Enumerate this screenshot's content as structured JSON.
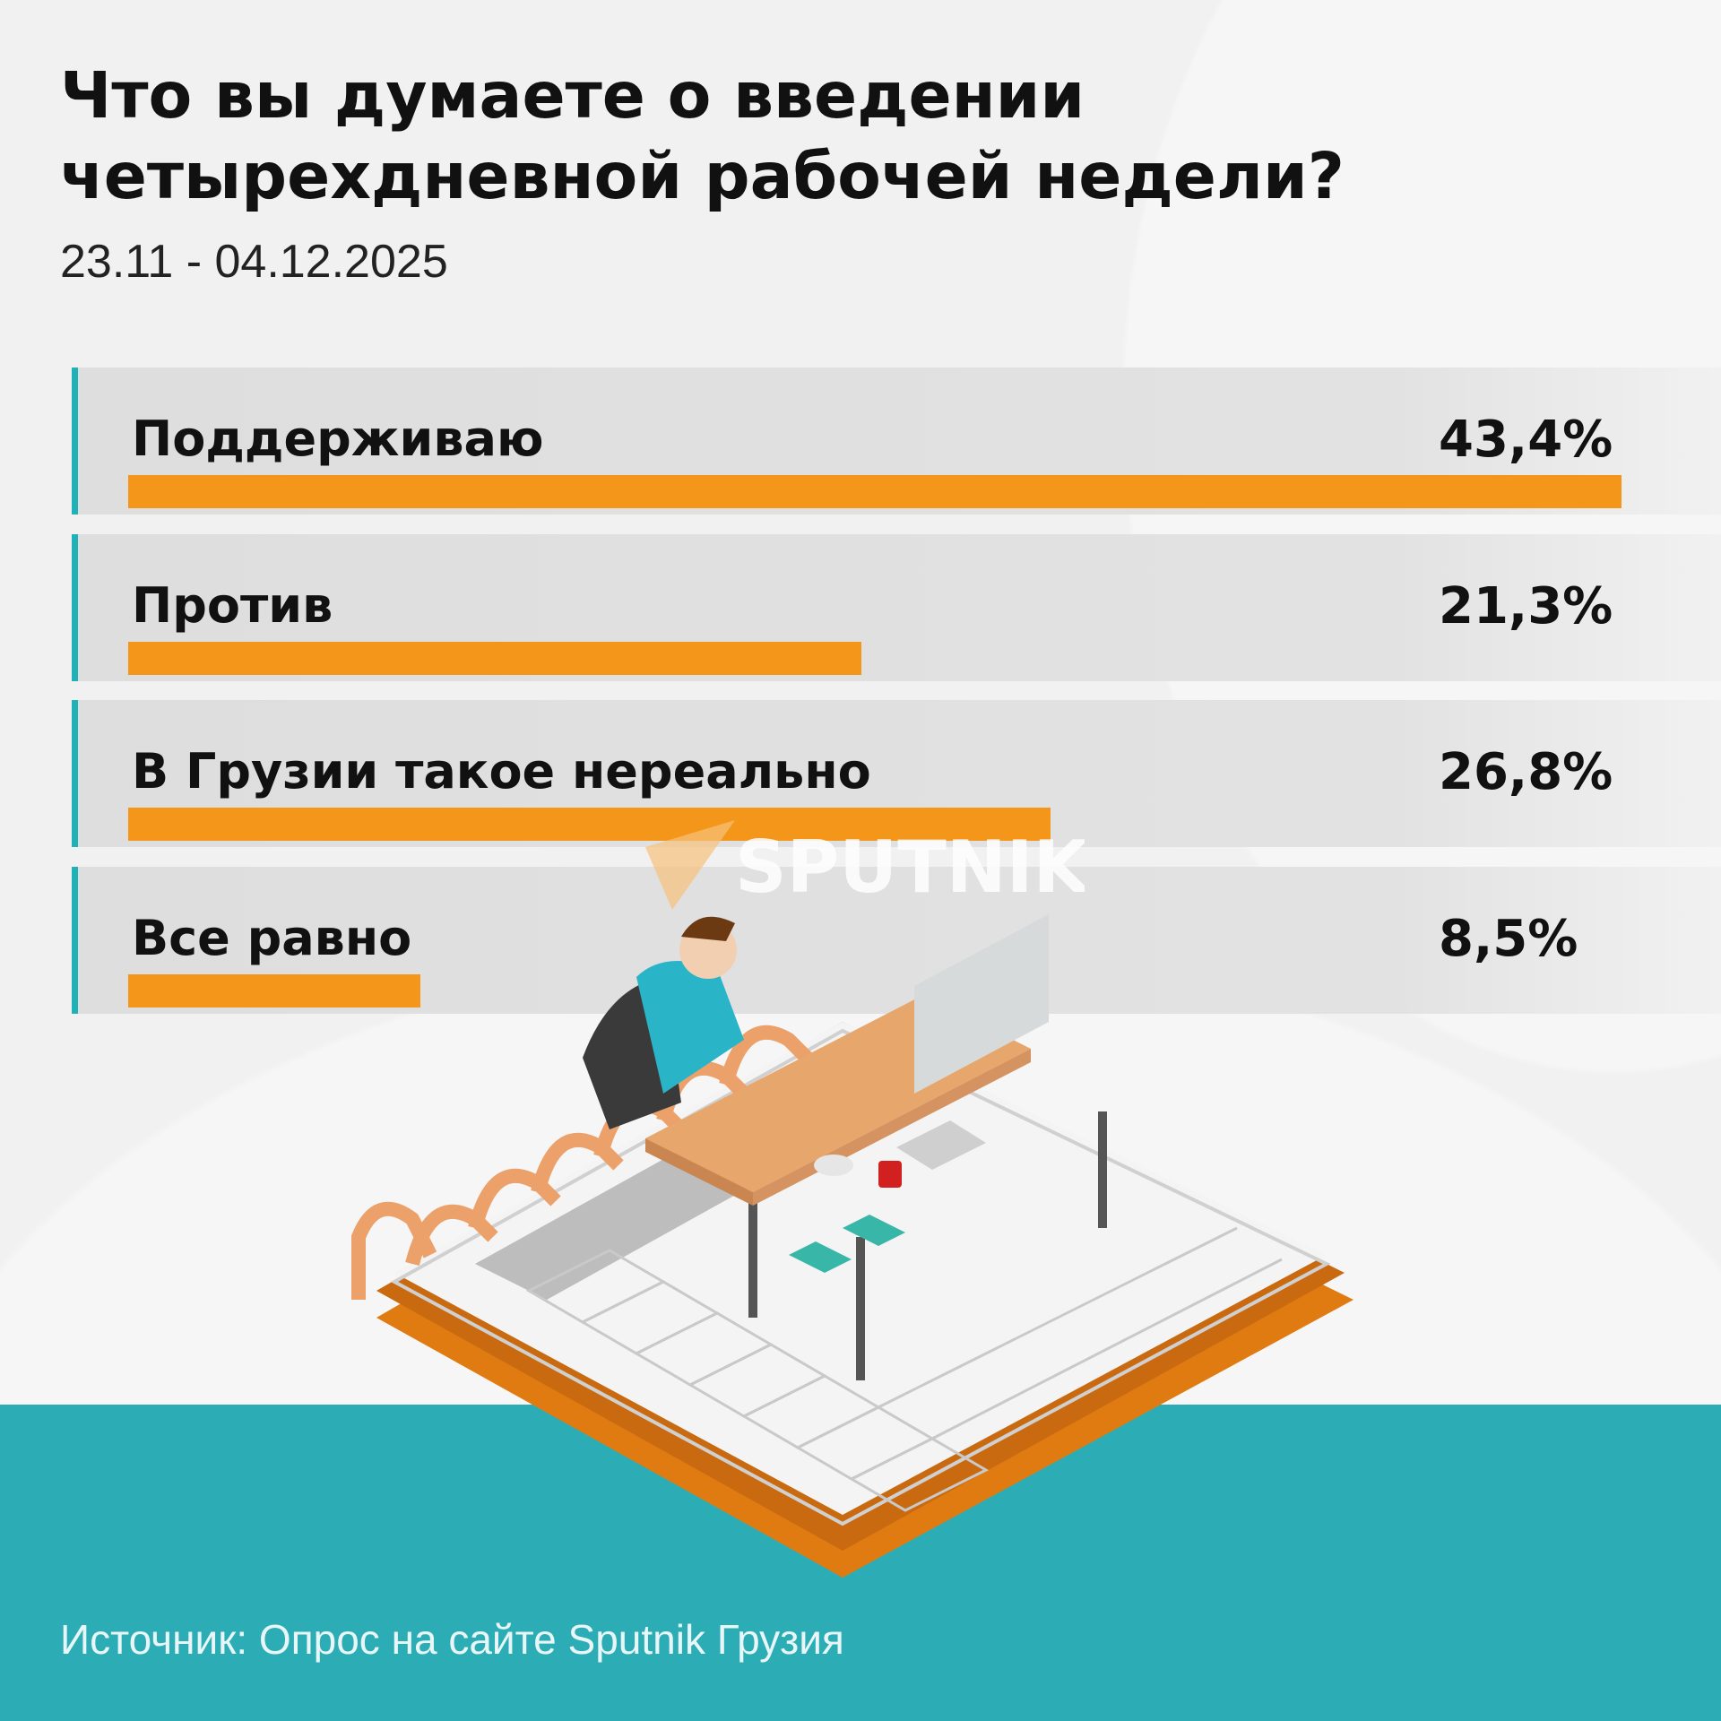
{
  "title": "Что вы думаете о введении четырехдневной рабочей недели?",
  "subtitle": "23.11 - 04.12.2025",
  "source": "Источник: Опрос на сайте Sputnik Грузия",
  "watermark": "SPUTNIK",
  "colors": {
    "bar": "#f3961a",
    "accent": "#20b0b8",
    "footer": "#2cadb6"
  },
  "chart_data": {
    "type": "bar",
    "orientation": "horizontal",
    "title": "Что вы думаете о введении четырехдневной рабочей недели?",
    "subtitle": "23.11 - 04.12.2025",
    "categories": [
      "Поддерживаю",
      "Против",
      "В Грузии такое нереально",
      "Все равно"
    ],
    "values": [
      43.4,
      21.3,
      26.8,
      8.5
    ],
    "labels": [
      "43,4%",
      "21,3%",
      "26,8%",
      "8,5%"
    ],
    "unit": "%",
    "grid": false
  }
}
